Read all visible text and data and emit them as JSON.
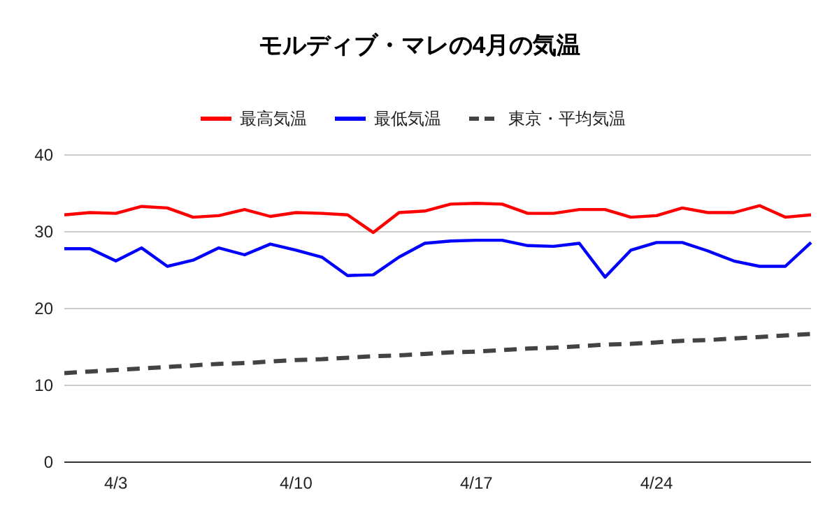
{
  "chart_data": {
    "type": "line",
    "title": "モルディブ・マレの4月の気温",
    "categories": [
      null,
      null,
      "4/3",
      null,
      null,
      null,
      null,
      null,
      null,
      "4/10",
      null,
      null,
      null,
      null,
      null,
      null,
      "4/17",
      null,
      null,
      null,
      null,
      null,
      null,
      "4/24",
      null,
      null,
      null,
      null,
      null,
      null
    ],
    "series": [
      {
        "name": "最高気温",
        "color": "#ff0000",
        "line_style": "solid",
        "values": [
          32.2,
          32.5,
          32.4,
          33.3,
          33.1,
          31.9,
          32.1,
          32.9,
          32.0,
          32.5,
          32.4,
          32.2,
          29.9,
          32.5,
          32.7,
          33.6,
          33.7,
          33.6,
          32.4,
          32.4,
          32.9,
          32.9,
          31.9,
          32.1,
          33.1,
          32.5,
          32.5,
          33.4,
          31.9,
          32.2
        ]
      },
      {
        "name": "最低気温",
        "color": "#0000ff",
        "line_style": "solid",
        "values": [
          27.8,
          27.8,
          26.2,
          27.9,
          25.5,
          26.3,
          27.9,
          27.0,
          28.4,
          27.6,
          26.7,
          24.3,
          24.4,
          26.7,
          28.5,
          28.8,
          28.9,
          28.9,
          28.2,
          28.1,
          28.5,
          24.1,
          27.6,
          28.6,
          28.6,
          27.5,
          26.2,
          25.5,
          25.5,
          28.6
        ]
      },
      {
        "name": "東京・平均気温",
        "color": "#434343",
        "line_style": "dashed",
        "values": [
          11.6,
          11.8,
          12.0,
          12.2,
          12.4,
          12.6,
          12.8,
          12.9,
          13.1,
          13.3,
          13.4,
          13.6,
          13.8,
          13.9,
          14.1,
          14.3,
          14.4,
          14.6,
          14.8,
          14.9,
          15.1,
          15.3,
          15.4,
          15.6,
          15.8,
          15.9,
          16.1,
          16.3,
          16.5,
          16.7
        ]
      }
    ],
    "ylim": [
      0,
      40
    ],
    "yticks": [
      0,
      10,
      20,
      30,
      40
    ],
    "grid": "y",
    "legend": "top",
    "marker": "none"
  }
}
